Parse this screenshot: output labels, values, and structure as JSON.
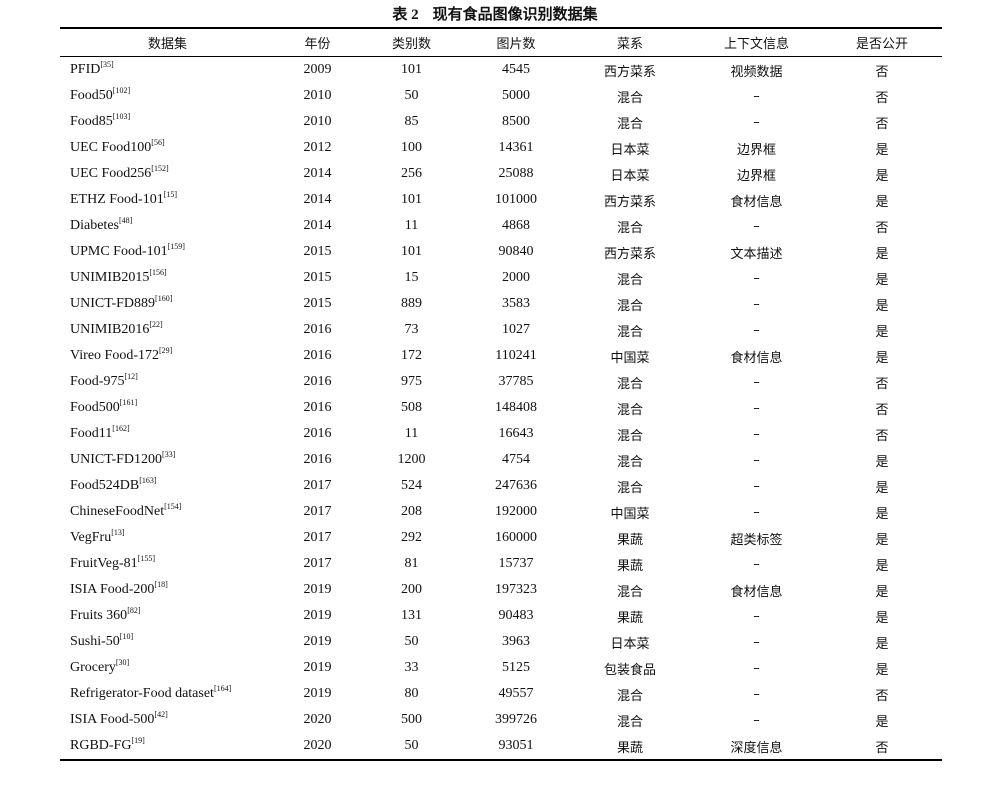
{
  "caption": {
    "number": "表 2",
    "title": "现有食品图像识别数据集"
  },
  "headers": [
    "数据集",
    "年份",
    "类别数",
    "图片数",
    "菜系",
    "上下文信息",
    "是否公开"
  ],
  "rows": [
    {
      "name": "PFID",
      "ref": "[35]",
      "year": "2009",
      "classes": "101",
      "images": "4545",
      "cuisine": "西方菜系",
      "context": "视频数据",
      "public": "否"
    },
    {
      "name": "Food50",
      "ref": "[102]",
      "year": "2010",
      "classes": "50",
      "images": "5000",
      "cuisine": "混合",
      "context": "–",
      "public": "否"
    },
    {
      "name": "Food85",
      "ref": "[103]",
      "year": "2010",
      "classes": "85",
      "images": "8500",
      "cuisine": "混合",
      "context": "–",
      "public": "否"
    },
    {
      "name": "UEC Food100",
      "ref": "[56]",
      "year": "2012",
      "classes": "100",
      "images": "14361",
      "cuisine": "日本菜",
      "context": "边界框",
      "public": "是"
    },
    {
      "name": "UEC Food256",
      "ref": "[152]",
      "year": "2014",
      "classes": "256",
      "images": "25088",
      "cuisine": "日本菜",
      "context": "边界框",
      "public": "是"
    },
    {
      "name": "ETHZ Food-101",
      "ref": "[15]",
      "year": "2014",
      "classes": "101",
      "images": "101000",
      "cuisine": "西方菜系",
      "context": "食材信息",
      "public": "是"
    },
    {
      "name": "Diabetes",
      "ref": "[48]",
      "year": "2014",
      "classes": "11",
      "images": "4868",
      "cuisine": "混合",
      "context": "–",
      "public": "否"
    },
    {
      "name": "UPMC Food-101",
      "ref": "[159]",
      "year": "2015",
      "classes": "101",
      "images": "90840",
      "cuisine": "西方菜系",
      "context": "文本描述",
      "public": "是"
    },
    {
      "name": "UNIMIB2015",
      "ref": "[156]",
      "year": "2015",
      "classes": "15",
      "images": "2000",
      "cuisine": "混合",
      "context": "–",
      "public": "是"
    },
    {
      "name": "UNICT-FD889",
      "ref": "[160]",
      "year": "2015",
      "classes": "889",
      "images": "3583",
      "cuisine": "混合",
      "context": "–",
      "public": "是"
    },
    {
      "name": "UNIMIB2016",
      "ref": "[22]",
      "year": "2016",
      "classes": "73",
      "images": "1027",
      "cuisine": "混合",
      "context": "–",
      "public": "是"
    },
    {
      "name": "Vireo Food-172",
      "ref": "[29]",
      "year": "2016",
      "classes": "172",
      "images": "110241",
      "cuisine": "中国菜",
      "context": "食材信息",
      "public": "是"
    },
    {
      "name": "Food-975",
      "ref": "[12]",
      "year": "2016",
      "classes": "975",
      "images": "37785",
      "cuisine": "混合",
      "context": "–",
      "public": "否"
    },
    {
      "name": "Food500",
      "ref": "[161]",
      "year": "2016",
      "classes": "508",
      "images": "148408",
      "cuisine": "混合",
      "context": "–",
      "public": "否"
    },
    {
      "name": "Food11",
      "ref": "[162]",
      "year": "2016",
      "classes": "11",
      "images": "16643",
      "cuisine": "混合",
      "context": "–",
      "public": "否"
    },
    {
      "name": "UNICT-FD1200",
      "ref": "[33]",
      "year": "2016",
      "classes": "1200",
      "images": "4754",
      "cuisine": "混合",
      "context": "–",
      "public": "是"
    },
    {
      "name": "Food524DB",
      "ref": "[163]",
      "year": "2017",
      "classes": "524",
      "images": "247636",
      "cuisine": "混合",
      "context": "–",
      "public": "是"
    },
    {
      "name": "ChineseFoodNet",
      "ref": "[154]",
      "year": "2017",
      "classes": "208",
      "images": "192000",
      "cuisine": "中国菜",
      "context": "–",
      "public": "是"
    },
    {
      "name": "VegFru",
      "ref": "[13]",
      "year": "2017",
      "classes": "292",
      "images": "160000",
      "cuisine": "果蔬",
      "context": "超类标签",
      "public": "是"
    },
    {
      "name": "FruitVeg-81",
      "ref": "[155]",
      "year": "2017",
      "classes": "81",
      "images": "15737",
      "cuisine": "果蔬",
      "context": "–",
      "public": "是"
    },
    {
      "name": "ISIA Food-200",
      "ref": "[18]",
      "year": "2019",
      "classes": "200",
      "images": "197323",
      "cuisine": "混合",
      "context": "食材信息",
      "public": "是"
    },
    {
      "name": "Fruits 360",
      "ref": "[82]",
      "year": "2019",
      "classes": "131",
      "images": "90483",
      "cuisine": "果蔬",
      "context": "–",
      "public": "是"
    },
    {
      "name": "Sushi-50",
      "ref": "[10]",
      "year": "2019",
      "classes": "50",
      "images": "3963",
      "cuisine": "日本菜",
      "context": "–",
      "public": "是"
    },
    {
      "name": "Grocery",
      "ref": "[30]",
      "year": "2019",
      "classes": "33",
      "images": "5125",
      "cuisine": "包装食品",
      "context": "–",
      "public": "是"
    },
    {
      "name": "Refrigerator-Food dataset",
      "ref": "[164]",
      "year": "2019",
      "classes": "80",
      "images": "49557",
      "cuisine": "混合",
      "context": "–",
      "public": "否"
    },
    {
      "name": "ISIA Food-500",
      "ref": "[42]",
      "year": "2020",
      "classes": "500",
      "images": "399726",
      "cuisine": "混合",
      "context": "–",
      "public": "是"
    },
    {
      "name": "RGBD-FG",
      "ref": "[19]",
      "year": "2020",
      "classes": "50",
      "images": "93051",
      "cuisine": "果蔬",
      "context": "深度信息",
      "public": "否"
    }
  ]
}
